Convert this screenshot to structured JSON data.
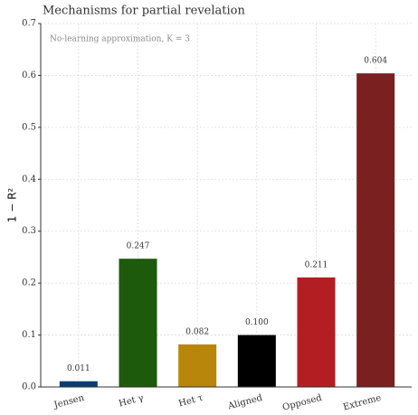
{
  "chart_data": {
    "type": "bar",
    "title": "Mechanisms for partial revelation",
    "annotation": "No-learning approximation, K = 3",
    "y_label": "1 − R²",
    "categories": [
      "Jensen",
      "Het γ",
      "Het τ",
      "Aligned",
      "Opposed",
      "Extreme"
    ],
    "values": [
      0.011,
      0.247,
      0.082,
      0.1,
      0.211,
      0.604
    ],
    "value_labels": [
      "0.011",
      "0.247",
      "0.082",
      "0.100",
      "0.211",
      "0.604"
    ],
    "colors": [
      "#0b3d73",
      "#1e5a0b",
      "#b8860b",
      "#000000",
      "#b31e22",
      "#7b2020"
    ],
    "ylim": [
      0,
      0.7
    ],
    "yticks": [
      {
        "value": 0,
        "label": "0.0"
      },
      0.1,
      0.2,
      0.3,
      0.4,
      0.5,
      0.6,
      0.7
    ],
    "grid": true
  }
}
